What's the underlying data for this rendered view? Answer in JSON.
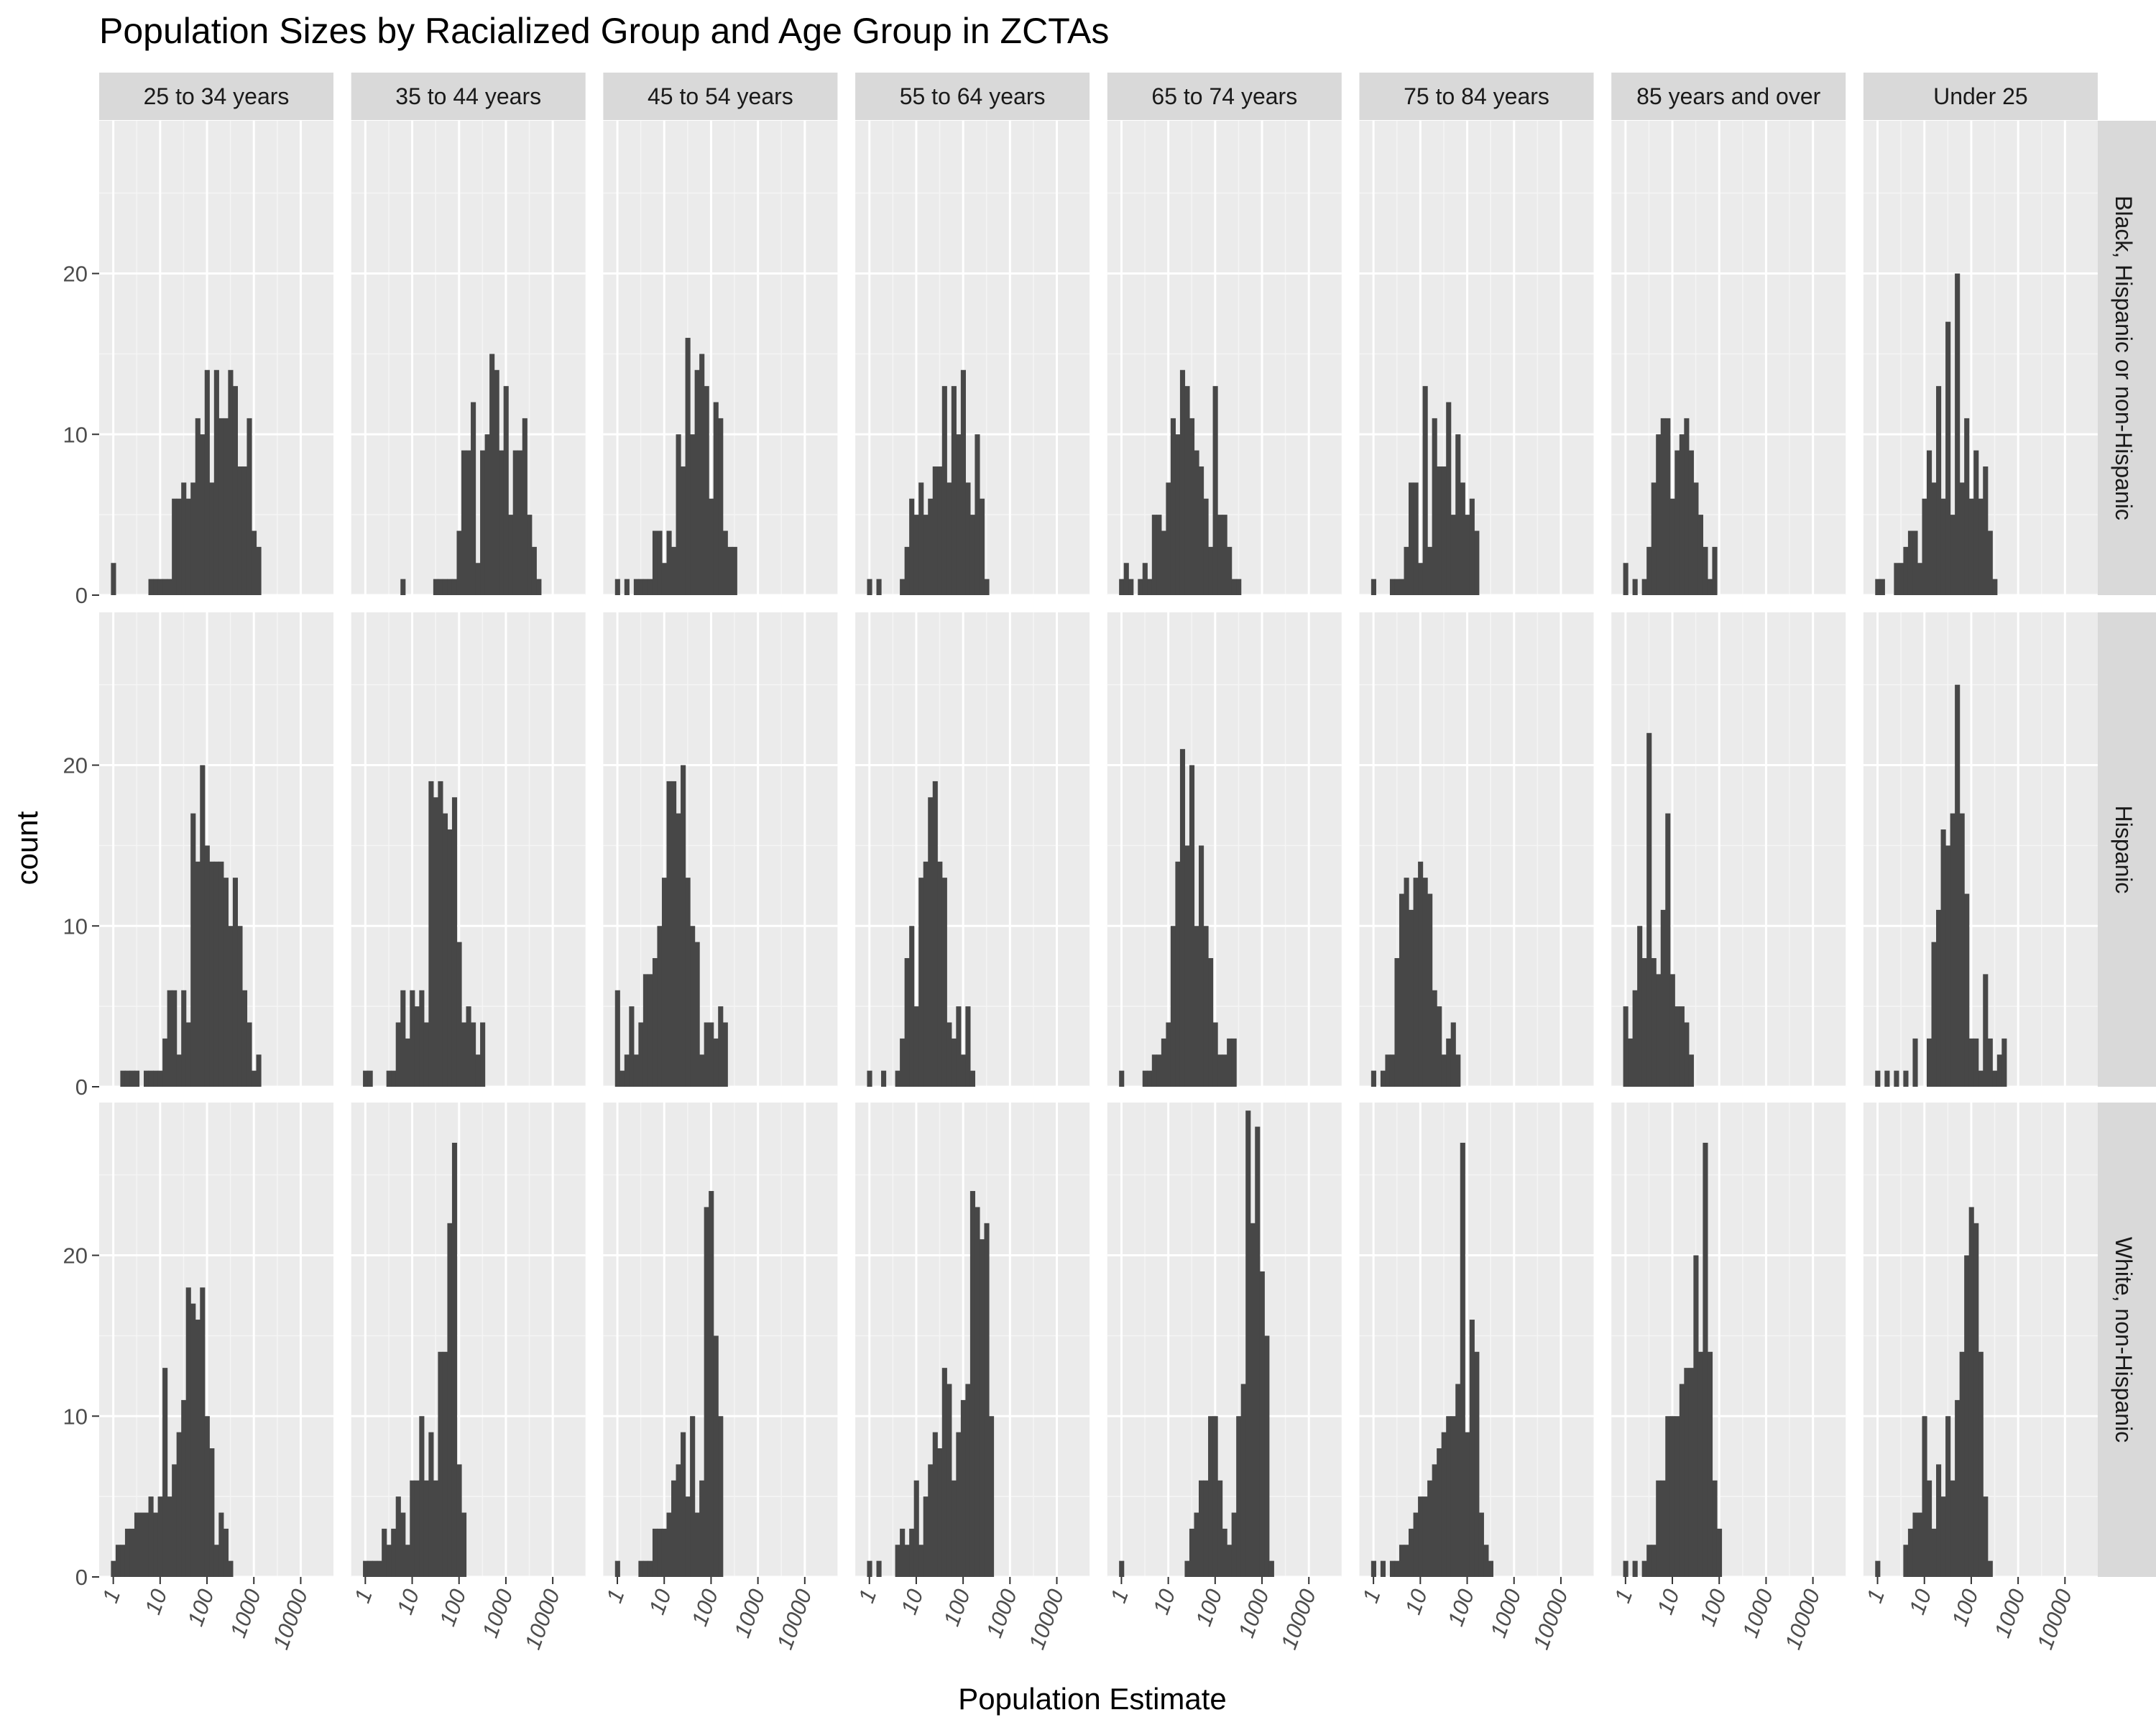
{
  "chart_data": {
    "type": "bar",
    "subtype": "faceted histogram",
    "title": "Population Sizes by Racialized Group and Age Group in ZCTAs",
    "xlabel": "Population Estimate",
    "ylabel": "count",
    "x_scale": "log10",
    "x_ticks": [
      "1",
      "10",
      "100",
      "1000",
      "10000"
    ],
    "xlim": [
      0.5,
      50000
    ],
    "y_ticks": [
      "0",
      "10",
      "20"
    ],
    "ylim": [
      0,
      29.5
    ],
    "grid": true,
    "bar_color": "#474747",
    "panel_background": "#ebebeb",
    "strip_background": "#d9d9d9",
    "columns": [
      "25 to 34 years",
      "35 to 44 years",
      "45 to 54 years",
      "55 to 64 years",
      "65 to 74 years",
      "75 to 84 years",
      "85 years and over",
      "Under 25"
    ],
    "rows": [
      "Black, Hispanic or non-Hispanic",
      "Hispanic",
      "White, non-Hispanic"
    ],
    "bin_log10_start": -0.05,
    "bin_log10_width": 0.1,
    "panels": [
      [
        [
          2,
          0,
          0,
          0,
          0,
          0,
          0,
          0,
          1,
          1,
          1,
          1,
          1,
          6,
          6,
          7,
          6,
          7,
          11,
          10,
          14,
          7,
          14,
          11,
          11,
          14,
          13,
          8,
          8,
          11,
          4,
          3
        ],
        [
          1,
          0,
          0,
          0,
          0,
          0,
          0,
          1,
          1,
          1,
          1,
          1,
          4,
          9,
          9,
          12,
          2,
          9,
          10,
          15,
          14,
          9,
          13,
          5,
          9,
          9,
          11,
          5,
          3,
          1
        ],
        [
          1,
          0,
          1,
          0,
          1,
          1,
          1,
          1,
          4,
          4,
          2,
          4,
          3,
          10,
          8,
          16,
          10,
          14,
          15,
          13,
          6,
          12,
          11,
          4,
          3,
          3
        ],
        [
          1,
          0,
          1,
          0,
          0,
          0,
          0,
          1,
          3,
          6,
          5,
          7,
          5,
          6,
          8,
          8,
          13,
          7,
          13,
          10,
          14,
          7,
          5,
          10,
          6,
          1
        ],
        [
          1,
          2,
          1,
          0,
          1,
          2,
          1,
          5,
          5,
          4,
          7,
          11,
          10,
          14,
          13,
          11,
          9,
          8,
          6,
          3,
          13,
          5,
          5,
          3,
          1,
          1
        ],
        [
          1,
          0,
          0,
          0,
          1,
          1,
          1,
          3,
          7,
          7,
          2,
          13,
          3,
          11,
          8,
          8,
          12,
          5,
          10,
          7,
          5,
          6,
          4
        ],
        [
          2,
          0,
          1,
          0,
          1,
          3,
          7,
          10,
          11,
          11,
          6,
          9,
          10,
          11,
          9,
          7,
          5,
          3,
          1,
          3
        ],
        [
          1,
          1,
          0,
          0,
          2,
          2,
          3,
          4,
          4,
          2,
          6,
          9,
          7,
          13,
          6,
          17,
          5,
          20,
          7,
          11,
          6,
          9,
          6,
          8,
          4,
          1
        ]
      ],
      [
        [
          0,
          0,
          1,
          1,
          1,
          1,
          0,
          1,
          1,
          1,
          1,
          3,
          6,
          6,
          2,
          6,
          4,
          17,
          14,
          20,
          15,
          14,
          14,
          14,
          13,
          10,
          13,
          10,
          6,
          4,
          1,
          2
        ],
        [
          1,
          1,
          0,
          0,
          0,
          1,
          1,
          4,
          6,
          3,
          6,
          5,
          6,
          4,
          19,
          18,
          19,
          17,
          16,
          18,
          9,
          4,
          5,
          4,
          2,
          4
        ],
        [
          6,
          1,
          2,
          5,
          2,
          4,
          7,
          7,
          8,
          10,
          13,
          19,
          19,
          17,
          20,
          13,
          10,
          9,
          2,
          4,
          4,
          3,
          5,
          4
        ],
        [
          1,
          0,
          0,
          1,
          0,
          0,
          1,
          3,
          8,
          10,
          5,
          13,
          14,
          18,
          19,
          14,
          13,
          4,
          3,
          5,
          2,
          5,
          1
        ],
        [
          1,
          0,
          0,
          0,
          0,
          1,
          1,
          2,
          2,
          3,
          4,
          10,
          14,
          21,
          15,
          20,
          10,
          15,
          10,
          8,
          4,
          2,
          2,
          3,
          3
        ],
        [
          1,
          0,
          1,
          2,
          2,
          8,
          12,
          13,
          11,
          13,
          14,
          13,
          12,
          6,
          5,
          2,
          3,
          4,
          2
        ],
        [
          5,
          3,
          6,
          10,
          8,
          22,
          8,
          7,
          11,
          17,
          7,
          5,
          5,
          4,
          2
        ],
        [
          1,
          0,
          1,
          0,
          1,
          0,
          1,
          0,
          3,
          0,
          0,
          3,
          9,
          11,
          16,
          15,
          17,
          25,
          17,
          12,
          3,
          3,
          1,
          7,
          3,
          1,
          2,
          3
        ]
      ],
      [
        [
          1,
          2,
          2,
          3,
          3,
          4,
          4,
          4,
          5,
          4,
          5,
          13,
          5,
          7,
          9,
          11,
          18,
          17,
          16,
          18,
          10,
          8,
          2,
          4,
          3,
          1
        ],
        [
          1,
          1,
          1,
          1,
          3,
          2,
          3,
          5,
          4,
          2,
          6,
          6,
          10,
          6,
          9,
          6,
          14,
          14,
          22,
          27,
          7,
          4
        ],
        [
          1,
          0,
          0,
          0,
          0,
          1,
          1,
          1,
          3,
          3,
          3,
          4,
          6,
          7,
          9,
          5,
          10,
          4,
          6,
          23,
          24,
          15,
          10
        ],
        [
          1,
          0,
          1,
          0,
          0,
          0,
          2,
          3,
          2,
          3,
          6,
          2,
          5,
          7,
          9,
          8,
          13,
          12,
          6,
          9,
          11,
          12,
          24,
          23,
          21,
          22,
          10
        ],
        [
          1,
          0,
          0,
          0,
          0,
          0,
          0,
          0,
          0,
          0,
          0,
          0,
          0,
          0,
          1,
          3,
          4,
          6,
          6,
          10,
          10,
          6,
          3,
          2,
          4,
          10,
          12,
          29,
          22,
          28,
          19,
          15,
          1
        ],
        [
          1,
          0,
          1,
          0,
          1,
          1,
          2,
          2,
          3,
          4,
          5,
          5,
          6,
          7,
          8,
          9,
          10,
          10,
          12,
          27,
          9,
          16,
          14,
          4,
          2,
          1
        ],
        [
          1,
          0,
          1,
          0,
          1,
          2,
          2,
          6,
          6,
          10,
          10,
          10,
          12,
          13,
          13,
          20,
          14,
          27,
          14,
          6,
          3
        ],
        [
          1,
          0,
          0,
          0,
          0,
          0,
          2,
          3,
          4,
          4,
          10,
          6,
          3,
          7,
          5,
          10,
          6,
          11,
          14,
          20,
          23,
          22,
          14,
          5,
          1
        ]
      ]
    ],
    "panel_start_bins": [
      [
        0,
        8,
        0,
        0,
        0,
        0,
        0,
        0
      ],
      [
        0,
        0,
        0,
        0,
        0,
        0,
        0,
        0
      ],
      [
        0,
        0,
        0,
        0,
        0,
        0,
        0,
        0
      ]
    ]
  }
}
